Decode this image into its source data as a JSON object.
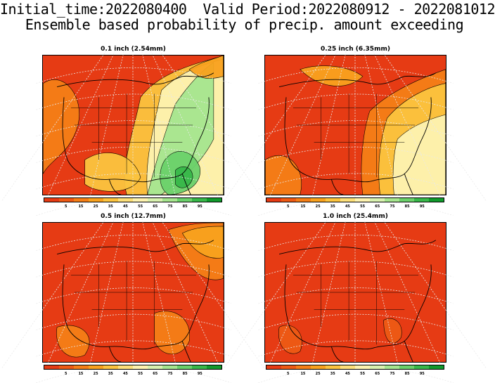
{
  "header": {
    "line1": "Initial_time:2022080400  Valid Period:2022080912 - 2022081012",
    "line2": "Ensemble based probability of precip. amount exceeding"
  },
  "colorbar": {
    "colors": [
      "#e63b14",
      "#ee5a14",
      "#f57f17",
      "#f9a21e",
      "#fcc43f",
      "#fde07a",
      "#fef3b0",
      "#d9f2b0",
      "#a6e68f",
      "#6bd16b",
      "#38b84a",
      "#119a2c"
    ],
    "tick_labels": [
      "5",
      "15",
      "25",
      "35",
      "45",
      "55",
      "65",
      "75",
      "85",
      "95"
    ]
  },
  "panels": [
    {
      "title": "0.1 inch (2.54mm)",
      "wet_level": "high"
    },
    {
      "title": "0.25 inch (6.35mm)",
      "wet_level": "moderate"
    },
    {
      "title": "0.5 inch (12.7mm)",
      "wet_level": "low"
    },
    {
      "title": "1.0 inch (25.4mm)",
      "wet_level": "very-low"
    }
  ]
}
